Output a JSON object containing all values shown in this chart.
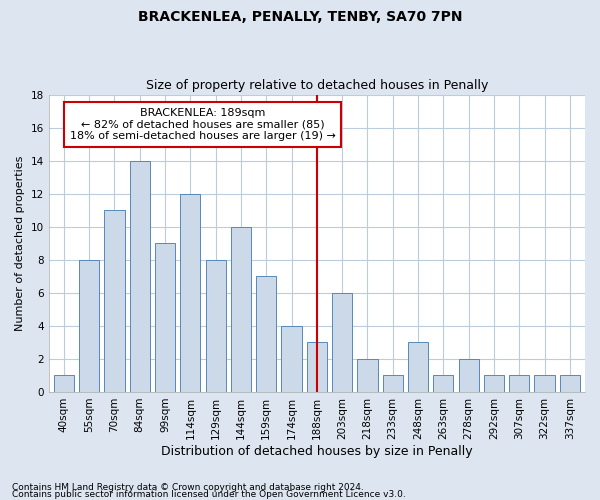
{
  "title": "BRACKENLEA, PENALLY, TENBY, SA70 7PN",
  "subtitle": "Size of property relative to detached houses in Penally",
  "xlabel": "Distribution of detached houses by size in Penally",
  "ylabel": "Number of detached properties",
  "categories": [
    "40sqm",
    "55sqm",
    "70sqm",
    "84sqm",
    "99sqm",
    "114sqm",
    "129sqm",
    "144sqm",
    "159sqm",
    "174sqm",
    "188sqm",
    "203sqm",
    "218sqm",
    "233sqm",
    "248sqm",
    "263sqm",
    "278sqm",
    "292sqm",
    "307sqm",
    "322sqm",
    "337sqm"
  ],
  "values": [
    1,
    8,
    11,
    14,
    9,
    12,
    8,
    10,
    7,
    4,
    3,
    6,
    2,
    1,
    3,
    1,
    2,
    1,
    1,
    1,
    1
  ],
  "bar_color": "#ccd9e8",
  "bar_edge_color": "#5588bb",
  "vline_x_index": 10,
  "vline_color": "#cc0000",
  "annotation_title": "BRACKENLEA: 189sqm",
  "annotation_line1": "← 82% of detached houses are smaller (85)",
  "annotation_line2": "18% of semi-detached houses are larger (19) →",
  "annotation_box_color": "#ffffff",
  "annotation_box_edge_color": "#cc0000",
  "ylim": [
    0,
    18
  ],
  "yticks": [
    0,
    2,
    4,
    6,
    8,
    10,
    12,
    14,
    16,
    18
  ],
  "fig_background_color": "#dde6f0",
  "plot_background_color": "#ffffff",
  "grid_color": "#bbccdd",
  "footer_line1": "Contains HM Land Registry data © Crown copyright and database right 2024.",
  "footer_line2": "Contains public sector information licensed under the Open Government Licence v3.0.",
  "title_fontsize": 10,
  "subtitle_fontsize": 9,
  "xlabel_fontsize": 9,
  "ylabel_fontsize": 8,
  "tick_fontsize": 7.5,
  "ann_fontsize": 8,
  "footer_fontsize": 6.5
}
